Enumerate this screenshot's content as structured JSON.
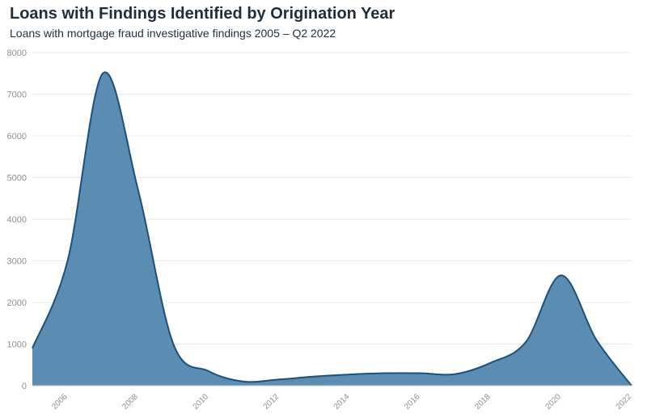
{
  "chart_data": {
    "type": "area",
    "title": "Loans with Findings Identified by Origination Year",
    "subtitle": "Loans with mortgage fraud investigative findings 2005 – Q2 2022",
    "xlabel": "",
    "ylabel": "",
    "x": [
      2005,
      2006,
      2007,
      2008,
      2009,
      2010,
      2011,
      2012,
      2013,
      2014,
      2015,
      2016,
      2017,
      2018,
      2019,
      2020,
      2021,
      2022
    ],
    "series": [
      {
        "values": [
          900,
          3000,
          7500,
          4700,
          1000,
          350,
          100,
          150,
          220,
          270,
          300,
          300,
          280,
          550,
          1050,
          2650,
          1100,
          0
        ]
      }
    ],
    "xlim": [
      2005,
      2022
    ],
    "ylim": [
      0,
      8000
    ],
    "y_ticks": [
      "0",
      "1000",
      "2000",
      "3000",
      "4000",
      "5000",
      "6000",
      "7000",
      "8000"
    ],
    "x_ticks": [
      "2006",
      "2008",
      "2010",
      "2012",
      "2014",
      "2016",
      "2018",
      "2020",
      "2022"
    ],
    "grid": true,
    "legend": "none",
    "colors": {
      "fill": "#5b8db3",
      "line": "#1c4f79"
    }
  }
}
